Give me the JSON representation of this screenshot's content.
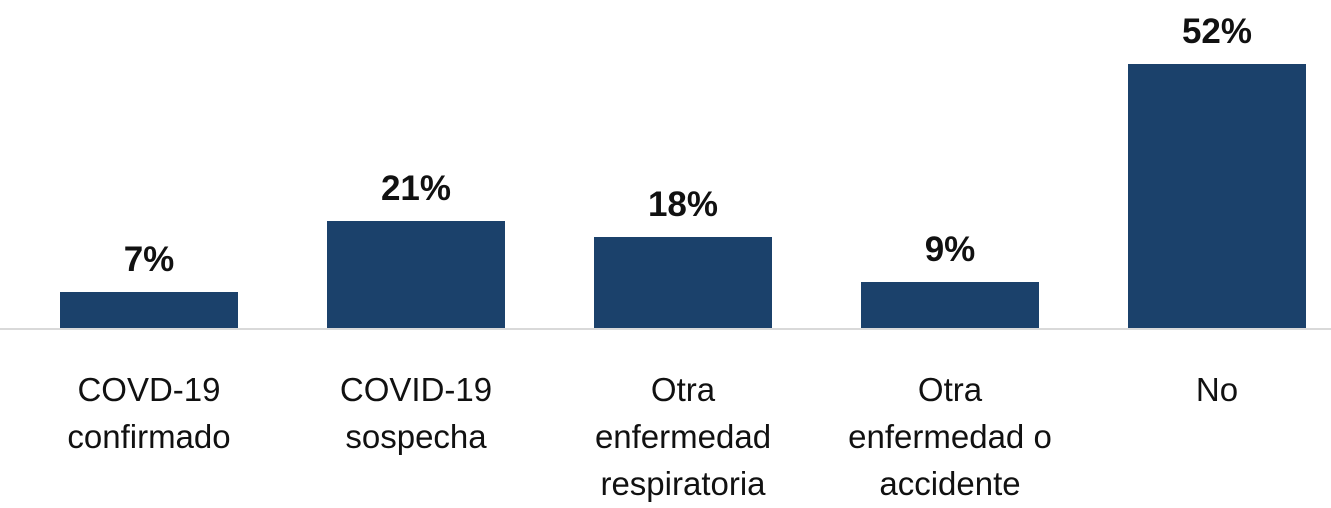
{
  "chart_data": {
    "type": "bar",
    "categories": [
      "COVD-19 confirmado",
      "COVID-19 sospecha",
      "Otra enfermedad respiratoria",
      "Otra enfermedad o accidente",
      "No"
    ],
    "values": [
      7,
      21,
      18,
      9,
      52
    ],
    "value_labels": [
      "7%",
      "21%",
      "18%",
      "9%",
      "52%"
    ],
    "color": "#1b416b"
  }
}
